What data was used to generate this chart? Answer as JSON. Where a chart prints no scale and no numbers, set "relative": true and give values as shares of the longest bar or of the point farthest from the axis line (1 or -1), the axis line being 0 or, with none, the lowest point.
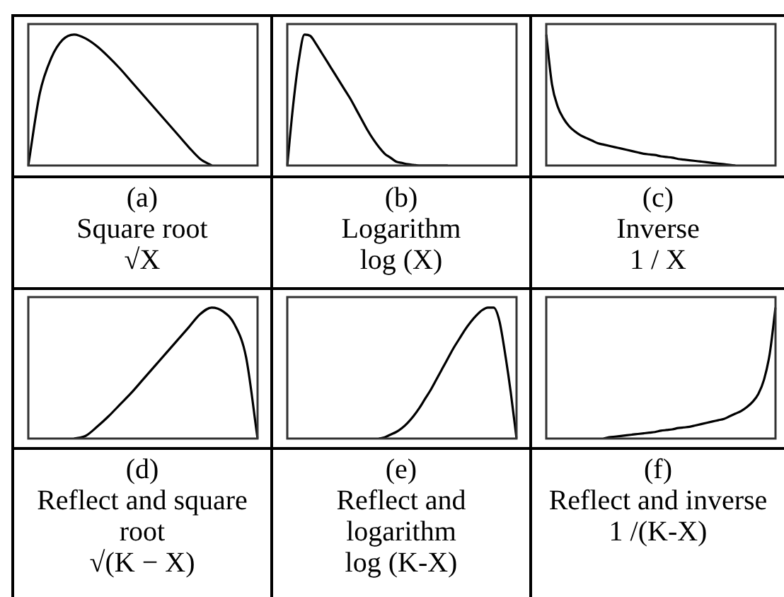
{
  "chart_data": [
    {
      "type": "line",
      "relative": true,
      "marker": "none",
      "title": "(a)",
      "subtitle": "Square root",
      "annotations": [
        "√X"
      ],
      "categories": [
        null,
        null,
        null,
        null,
        null,
        null,
        null,
        null,
        null,
        null,
        null,
        null,
        null,
        null,
        null,
        null,
        null,
        null,
        null,
        null,
        null
      ],
      "series": [
        {
          "color": "#000000",
          "values": [
            0,
            0.55,
            0.82,
            0.96,
            1,
            0.97,
            0.91,
            0.83,
            0.74,
            0.64,
            0.54,
            0.44,
            0.34,
            0.24,
            0.14,
            0.05,
            0,
            null,
            null,
            null,
            null
          ]
        }
      ]
    },
    {
      "type": "line",
      "relative": true,
      "marker": "none",
      "title": "(b)",
      "subtitle": "Logarithm",
      "annotations": [
        "log (X)"
      ],
      "categories": [
        null,
        null,
        null,
        null,
        null,
        null,
        null,
        null,
        null,
        null,
        null,
        null,
        null,
        null,
        null,
        null,
        null,
        null,
        null,
        null,
        null,
        null,
        null,
        null,
        null,
        null,
        null,
        null,
        null,
        null,
        null,
        null,
        null,
        null,
        null,
        null,
        null,
        null,
        null,
        null,
        null
      ],
      "series": [
        {
          "color": "#000000",
          "values": [
            0,
            0.45,
            0.8,
            1,
            0.99,
            0.93,
            0.86,
            0.79,
            0.72,
            0.65,
            0.58,
            0.51,
            0.43,
            0.35,
            0.27,
            0.2,
            0.14,
            0.09,
            0.06,
            0.03,
            0.02,
            0.01,
            0.005,
            0,
            0,
            0,
            0,
            0,
            0,
            null,
            null,
            null,
            null,
            null,
            null,
            null,
            null,
            null,
            null,
            null,
            null
          ]
        }
      ]
    },
    {
      "type": "line",
      "relative": true,
      "marker": "none",
      "title": "(c)",
      "subtitle": "Inverse",
      "annotations": [
        "1 / X"
      ],
      "categories": [
        null,
        null,
        null,
        null,
        null,
        null,
        null,
        null,
        null,
        null,
        null,
        null,
        null,
        null,
        null,
        null,
        null,
        null,
        null,
        null,
        null,
        null,
        null,
        null,
        null,
        null,
        null,
        null,
        null,
        null,
        null,
        null,
        null,
        null,
        null,
        null,
        null,
        null,
        null,
        null,
        null
      ],
      "series": [
        {
          "color": "#000000",
          "values": [
            1,
            0.62,
            0.45,
            0.36,
            0.3,
            0.26,
            0.23,
            0.21,
            0.19,
            0.17,
            0.16,
            0.15,
            0.14,
            0.13,
            0.12,
            0.11,
            0.1,
            0.09,
            0.085,
            0.08,
            0.07,
            0.065,
            0.06,
            0.05,
            0.045,
            0.04,
            0.035,
            0.03,
            0.025,
            0.02,
            0.015,
            0.01,
            0.005,
            0,
            null,
            null,
            null,
            null,
            null,
            null,
            null
          ]
        }
      ]
    },
    {
      "type": "line",
      "relative": true,
      "marker": "none",
      "title": "(d)",
      "subtitle": "Reflect and square root",
      "annotations": [
        "√(K − X)"
      ],
      "categories": [
        null,
        null,
        null,
        null,
        null,
        null,
        null,
        null,
        null,
        null,
        null,
        null,
        null,
        null,
        null,
        null,
        null,
        null,
        null,
        null,
        null
      ],
      "series": [
        {
          "color": "#000000",
          "values": [
            null,
            null,
            null,
            null,
            0,
            0.02,
            0.09,
            0.17,
            0.26,
            0.35,
            0.45,
            0.55,
            0.65,
            0.75,
            0.85,
            0.95,
            1,
            0.97,
            0.87,
            0.62,
            0
          ]
        }
      ]
    },
    {
      "type": "line",
      "relative": true,
      "marker": "none",
      "title": "(e)",
      "subtitle": "Reflect and logarithm",
      "annotations": [
        "log (K-X)"
      ],
      "categories": [
        null,
        null,
        null,
        null,
        null,
        null,
        null,
        null,
        null,
        null,
        null,
        null,
        null,
        null,
        null,
        null,
        null,
        null,
        null,
        null,
        null,
        null,
        null,
        null,
        null,
        null,
        null,
        null,
        null,
        null,
        null,
        null,
        null,
        null,
        null,
        null,
        null,
        null,
        null,
        null,
        null
      ],
      "series": [
        {
          "color": "#000000",
          "values": [
            null,
            null,
            null,
            null,
            null,
            null,
            null,
            null,
            null,
            null,
            null,
            null,
            null,
            null,
            null,
            null,
            0,
            0.01,
            0.03,
            0.05,
            0.08,
            0.12,
            0.17,
            0.23,
            0.3,
            0.37,
            0.45,
            0.53,
            0.61,
            0.69,
            0.76,
            0.83,
            0.89,
            0.94,
            0.98,
            1,
            1,
            0.9,
            0.65,
            0.35,
            0
          ]
        }
      ]
    },
    {
      "type": "line",
      "relative": true,
      "marker": "none",
      "title": "(f)",
      "subtitle": "Reflect and inverse",
      "annotations": [
        "1 /(K-X)"
      ],
      "categories": [
        null,
        null,
        null,
        null,
        null,
        null,
        null,
        null,
        null,
        null,
        null,
        null,
        null,
        null,
        null,
        null,
        null,
        null,
        null,
        null,
        null,
        null,
        null,
        null,
        null,
        null,
        null,
        null,
        null,
        null,
        null,
        null,
        null,
        null,
        null,
        null,
        null,
        null,
        null,
        null,
        null
      ],
      "series": [
        {
          "color": "#000000",
          "values": [
            null,
            null,
            null,
            null,
            null,
            null,
            null,
            null,
            null,
            null,
            0,
            0.01,
            0.015,
            0.02,
            0.025,
            0.03,
            0.035,
            0.04,
            0.045,
            0.05,
            0.06,
            0.065,
            0.07,
            0.08,
            0.085,
            0.09,
            0.1,
            0.11,
            0.12,
            0.13,
            0.14,
            0.15,
            0.17,
            0.19,
            0.21,
            0.24,
            0.28,
            0.34,
            0.45,
            0.65,
            1
          ]
        }
      ]
    }
  ]
}
